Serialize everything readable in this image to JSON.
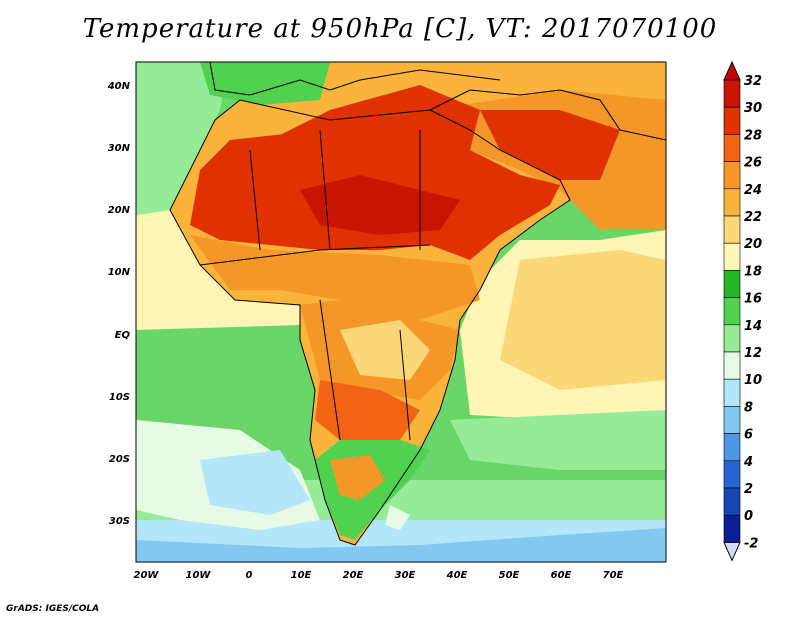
{
  "title": "Temperature at 950hPa [C], VT: 2017070100",
  "credit": "GrADS: IGES/COLA",
  "map": {
    "lon_ticks": [
      "20W",
      "10W",
      "0",
      "10E",
      "20E",
      "30E",
      "40E",
      "50E",
      "60E",
      "70E"
    ],
    "lat_ticks": [
      "40N",
      "30N",
      "20N",
      "10N",
      "EQ",
      "10S",
      "20S",
      "30S"
    ]
  },
  "colorbar": {
    "labels": [
      "32",
      "30",
      "28",
      "26",
      "24",
      "22",
      "20",
      "18",
      "16",
      "14",
      "12",
      "10",
      "8",
      "6",
      "4",
      "2",
      "0",
      "-2"
    ],
    "colors": [
      "#c81400",
      "#e03200",
      "#f06414",
      "#f59628",
      "#fab43c",
      "#fcd778",
      "#fff5b4",
      "#28b428",
      "#50d250",
      "#96ec96",
      "#e6fae6",
      "#b4e6fa",
      "#82c8f0",
      "#5096e6",
      "#2864d2",
      "#1446b4",
      "#0a1e96",
      "#d8d8f8"
    ],
    "top_color": "#c80000",
    "bottom_color": "#d8d8f8"
  }
}
